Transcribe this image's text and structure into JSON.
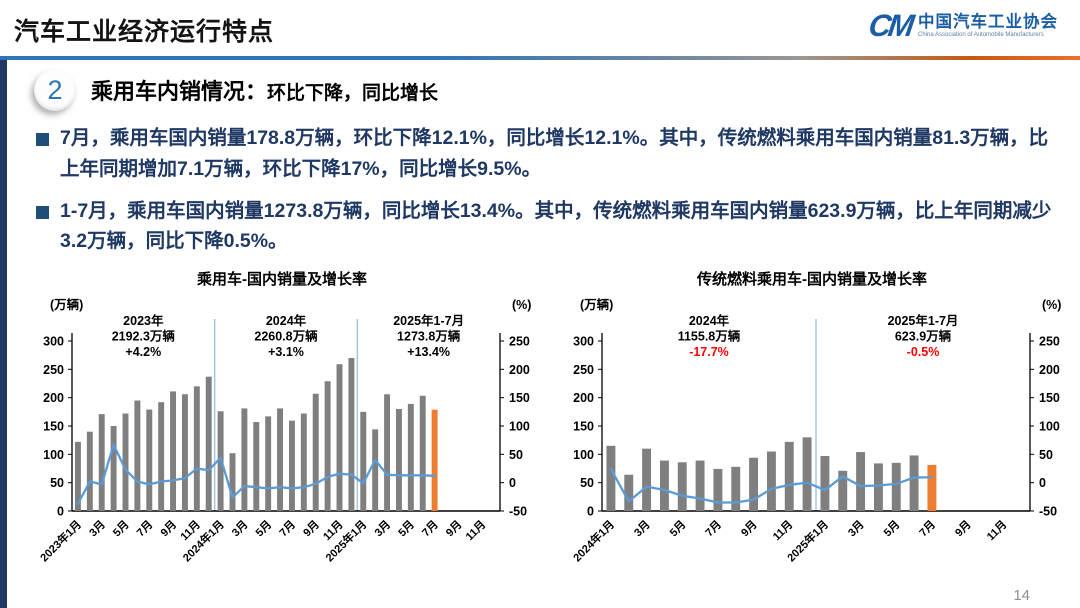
{
  "page": {
    "title": "汽车工业经济运行特点",
    "number": "14"
  },
  "logo": {
    "mark": "CM",
    "cn": "中国汽车工业协会",
    "en": "China Association of Automobile Manufacturers"
  },
  "section": {
    "number": "2",
    "title": "乘用车内销情况：",
    "subtitle": "环比下降，同比增长"
  },
  "bullets": [
    {
      "text": "7月，乘用车国内销量178.8万辆，环比下降12.1%，同比增长12.1%。其中，传统燃料乘用车国内销量81.3万辆，比上年同期增加7.1万辆，环比下降17%，同比增长9.5%。"
    },
    {
      "text": "1-7月，乘用车国内销量1273.8万辆，同比增长13.4%。其中，传统燃料乘用车国内销量623.9万辆，比上年同期减少3.2万辆，同比下降0.5%。"
    }
  ],
  "colors": {
    "bar": "#7F7F7F",
    "highlight_bar": "#ED7D31",
    "line": "#5B9BD5",
    "separator": "#9DC3E6",
    "body_text": "#1F3864",
    "accent_bar": "#1F3864",
    "annotation_red": "#FF0000",
    "logo_blue": "#1B5EA6"
  },
  "chart_data": [
    {
      "type": "bar+line",
      "title": "乘用车-国内销量及增长率",
      "left_axis": {
        "label": "(万辆)",
        "range": [
          0,
          300
        ],
        "step": 50
      },
      "right_axis": {
        "label": "(%)",
        "range": [
          -50,
          250
        ],
        "step": 50
      },
      "slots": 36,
      "x_months": [
        "2023年1月",
        "2023年2月",
        "2023年3月",
        "2023年4月",
        "2023年5月",
        "2023年6月",
        "2023年7月",
        "2023年8月",
        "2023年9月",
        "2023年10月",
        "2023年11月",
        "2023年12月",
        "2024年1月",
        "2024年2月",
        "2024年3月",
        "2024年4月",
        "2024年5月",
        "2024年6月",
        "2024年7月",
        "2024年8月",
        "2024年9月",
        "2024年10月",
        "2024年11月",
        "2024年12月",
        "2025年1月",
        "2025年2月",
        "2025年3月",
        "2025年4月",
        "2025年5月",
        "2025年6月",
        "2025年7月"
      ],
      "x_tick_labels": [
        "2023年1月",
        "3月",
        "5月",
        "7月",
        "9月",
        "11月",
        "2024年1月",
        "3月",
        "5月",
        "7月",
        "9月",
        "11月",
        "2025年1月",
        "3月",
        "5月",
        "7月",
        "9月",
        "11月"
      ],
      "series": [
        {
          "name": "国内销量(万辆)",
          "type": "bar",
          "axis": "left",
          "highlight_last": true,
          "values": [
            122,
            140,
            171,
            150,
            172,
            195,
            179,
            192,
            211,
            206,
            220,
            237,
            176,
            102,
            181,
            157,
            167,
            181,
            159.5,
            172,
            207,
            229,
            259,
            270,
            175,
            144,
            206,
            180,
            189,
            203.4,
            178.8
          ]
        },
        {
          "name": "增长率(%)",
          "type": "line",
          "axis": "right",
          "values": [
            -37,
            2,
            -3,
            67,
            23,
            2,
            -3,
            2,
            4,
            8,
            25,
            22,
            44,
            -26,
            -6,
            -8,
            -10,
            -8,
            -10,
            -8,
            -2,
            10,
            16,
            14,
            -1,
            40,
            14,
            13,
            13,
            13,
            12.1
          ]
        }
      ],
      "separators": [
        12,
        24
      ],
      "annotations": [
        {
          "lines": [
            "2023年",
            "2192.3万辆",
            "+4.2%"
          ],
          "center_slot": 6,
          "growth_color": "#000000"
        },
        {
          "lines": [
            "2024年",
            "2260.8万辆",
            "+3.1%"
          ],
          "center_slot": 18,
          "growth_color": "#000000"
        },
        {
          "lines": [
            "2025年1-7月",
            "1273.8万辆",
            "+13.4%"
          ],
          "center_slot": 30,
          "growth_color": "#000000"
        }
      ]
    },
    {
      "type": "bar+line",
      "title": "传统燃料乘用车-国内销量及增长率",
      "left_axis": {
        "label": "(万辆)",
        "range": [
          0,
          300
        ],
        "step": 50
      },
      "right_axis": {
        "label": "(%)",
        "range": [
          -50,
          250
        ],
        "step": 50
      },
      "slots": 24,
      "x_months": [
        "2024年1月",
        "2024年2月",
        "2024年3月",
        "2024年4月",
        "2024年5月",
        "2024年6月",
        "2024年7月",
        "2024年8月",
        "2024年9月",
        "2024年10月",
        "2024年11月",
        "2024年12月",
        "2025年1月",
        "2025年2月",
        "2025年3月",
        "2025年4月",
        "2025年5月",
        "2025年6月",
        "2025年7月"
      ],
      "x_tick_labels": [
        "2024年1月",
        "3月",
        "5月",
        "7月",
        "9月",
        "11月",
        "2025年1月",
        "3月",
        "5月",
        "7月",
        "9月",
        "11月"
      ],
      "series": [
        {
          "name": "国内销量(万辆)",
          "type": "bar",
          "axis": "left",
          "highlight_last": true,
          "values": [
            115,
            64,
            110,
            89,
            86,
            89,
            74.2,
            78,
            94,
            105,
            122,
            130,
            97,
            71,
            104,
            84,
            85,
            98,
            81.3
          ]
        },
        {
          "name": "增长率(%)",
          "type": "line",
          "axis": "right",
          "values": [
            24,
            -33,
            -7,
            -13,
            -23,
            -28,
            -35,
            -35,
            -30,
            -11,
            -4,
            0,
            -13,
            11,
            -6,
            -5,
            -2,
            9,
            9.5
          ]
        }
      ],
      "separators": [
        12
      ],
      "annotations": [
        {
          "lines": [
            "2024年",
            "1155.8万辆",
            "-17.7%"
          ],
          "center_slot": 6,
          "growth_color": "#FF0000"
        },
        {
          "lines": [
            "2025年1-7月",
            "623.9万辆",
            "-0.5%"
          ],
          "center_slot": 18,
          "growth_color": "#FF0000"
        }
      ]
    }
  ]
}
